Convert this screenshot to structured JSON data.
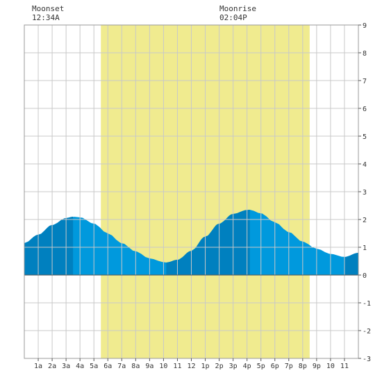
{
  "header": {
    "moonset_label": "Moonset",
    "moonset_time": "12:34A",
    "moonrise_label": "Moonrise",
    "moonrise_time": "02:04P"
  },
  "colors": {
    "daylight": "#f0eb8f",
    "tide_light": "#0099dd",
    "tide_dark": "#0080bf",
    "grid": "#c8c8c8",
    "zero_line": "#555555"
  },
  "chart_data": {
    "type": "area",
    "title": "",
    "xlabel": "",
    "ylabel": "",
    "xlim": [
      0,
      24
    ],
    "ylim": [
      -3,
      9
    ],
    "grid": true,
    "x_tick_labels": [
      "1a",
      "2a",
      "3a",
      "4a",
      "5a",
      "6a",
      "7a",
      "8a",
      "9a",
      "10",
      "11",
      "12",
      "1p",
      "2p",
      "3p",
      "4p",
      "5p",
      "6p",
      "7p",
      "8p",
      "9p",
      "10",
      "11"
    ],
    "y_tick_labels": [
      "9",
      "8",
      "7",
      "6",
      "5",
      "4",
      "3",
      "2",
      "1",
      "0",
      "-1",
      "-2",
      "-3"
    ],
    "daylight_hours": [
      5.5,
      20.5
    ],
    "dark_segments_hours": [
      [
        0,
        3.5
      ],
      [
        10.2,
        16.2
      ],
      [
        23.0,
        24.0
      ]
    ],
    "tide_extrema": [
      {
        "type": "high",
        "hour": 3.5,
        "height": 2.1
      },
      {
        "type": "low",
        "hour": 10.2,
        "height": 0.45
      },
      {
        "type": "high",
        "hour": 16.2,
        "height": 2.35
      },
      {
        "type": "low",
        "hour": 23.0,
        "height": 0.65
      }
    ],
    "series": [
      {
        "x": [
          0,
          1,
          2,
          3,
          3.5,
          4,
          5,
          6,
          7,
          8,
          9,
          10,
          10.2,
          11,
          12,
          13,
          14,
          15,
          16,
          16.2,
          17,
          18,
          19,
          20,
          21,
          22,
          23,
          24
        ],
        "values": [
          1.15,
          1.45,
          1.8,
          2.05,
          2.1,
          2.08,
          1.85,
          1.5,
          1.15,
          0.85,
          0.6,
          0.47,
          0.45,
          0.55,
          0.87,
          1.38,
          1.85,
          2.2,
          2.34,
          2.35,
          2.22,
          1.9,
          1.55,
          1.2,
          0.95,
          0.76,
          0.65,
          0.8
        ]
      }
    ]
  }
}
